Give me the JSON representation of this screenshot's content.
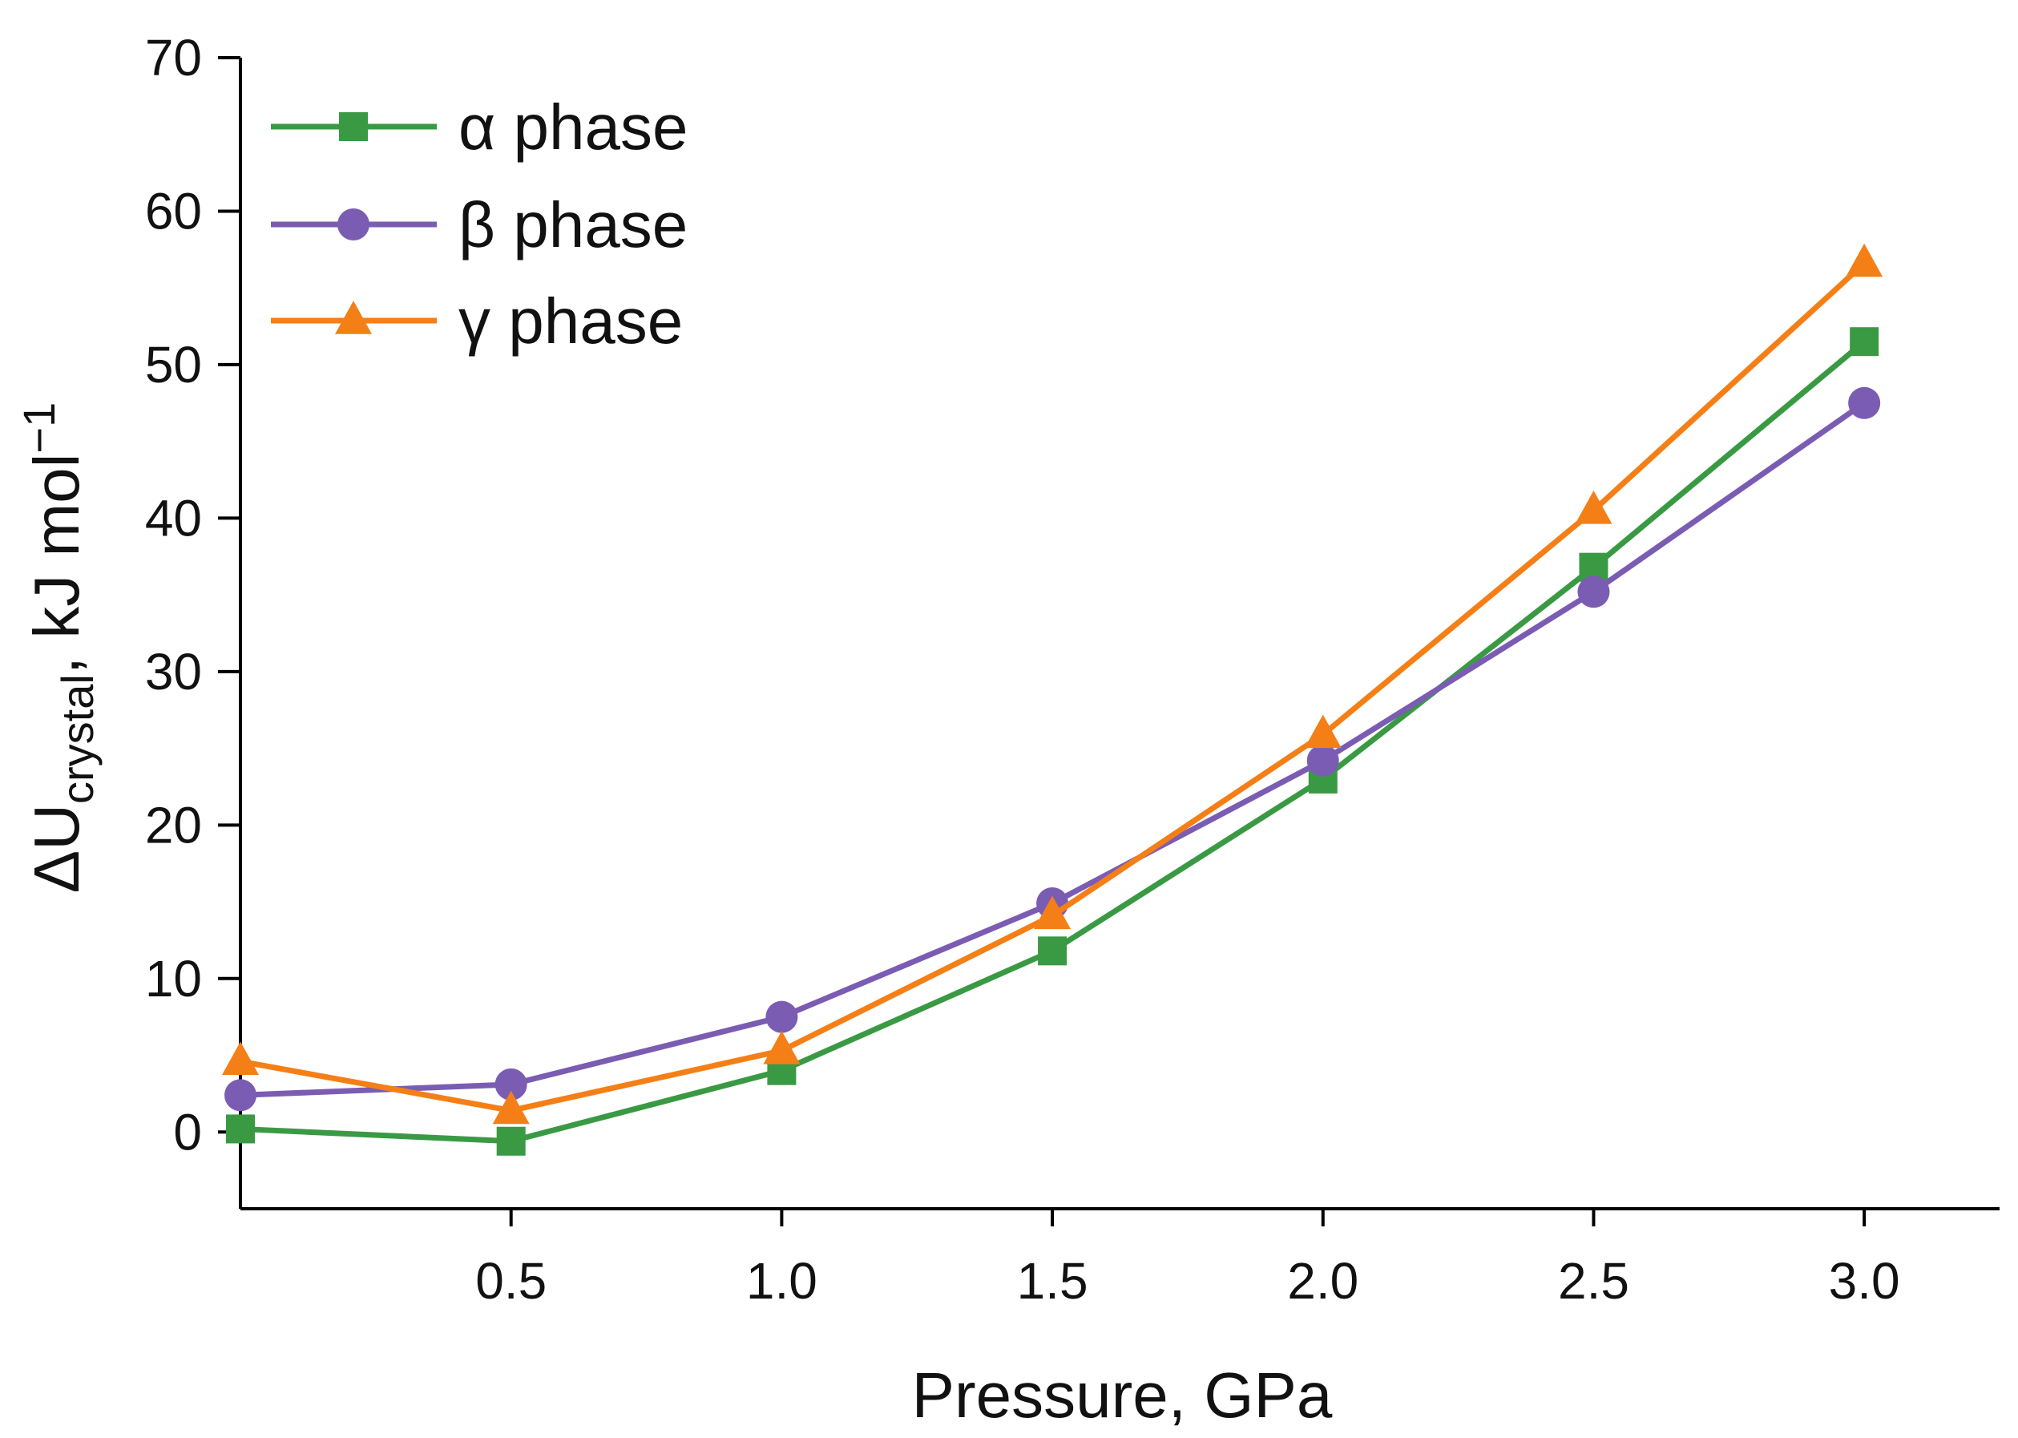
{
  "chart_data": {
    "type": "line",
    "title": "",
    "xlabel": "Pressure, GPa",
    "ylabel": {
      "prefix": "ΔU",
      "subscript": "crystal",
      "suffix": ", kJ mol",
      "superscript": "−1"
    },
    "xlim": [
      0.0,
      3.25
    ],
    "ylim": [
      -5,
      70
    ],
    "xticks": [
      0.5,
      1.0,
      1.5,
      2.0,
      2.5,
      3.0
    ],
    "xtick_labels": [
      "0.5",
      "1.0",
      "1.5",
      "2.0",
      "2.5",
      "3.0"
    ],
    "yticks": [
      0,
      10,
      20,
      30,
      40,
      50,
      60,
      70
    ],
    "ytick_labels": [
      "0",
      "10",
      "20",
      "30",
      "40",
      "50",
      "60",
      "70"
    ],
    "x": [
      0.0,
      0.5,
      1.0,
      1.5,
      2.0,
      2.5,
      3.0
    ],
    "legend_position": "top-left",
    "series": [
      {
        "name": "α phase",
        "marker": "square",
        "color": "#3a9a44",
        "values": [
          0.2,
          -0.6,
          4.0,
          11.8,
          23.0,
          36.8,
          51.5
        ]
      },
      {
        "name": "β phase",
        "marker": "circle",
        "color": "#7b5cb3",
        "values": [
          2.4,
          3.1,
          7.5,
          14.9,
          24.2,
          35.2,
          47.5
        ]
      },
      {
        "name": "γ phase",
        "marker": "triangle",
        "color": "#f57f17",
        "values": [
          4.6,
          1.4,
          5.3,
          14.1,
          25.9,
          40.5,
          56.6
        ]
      }
    ]
  }
}
